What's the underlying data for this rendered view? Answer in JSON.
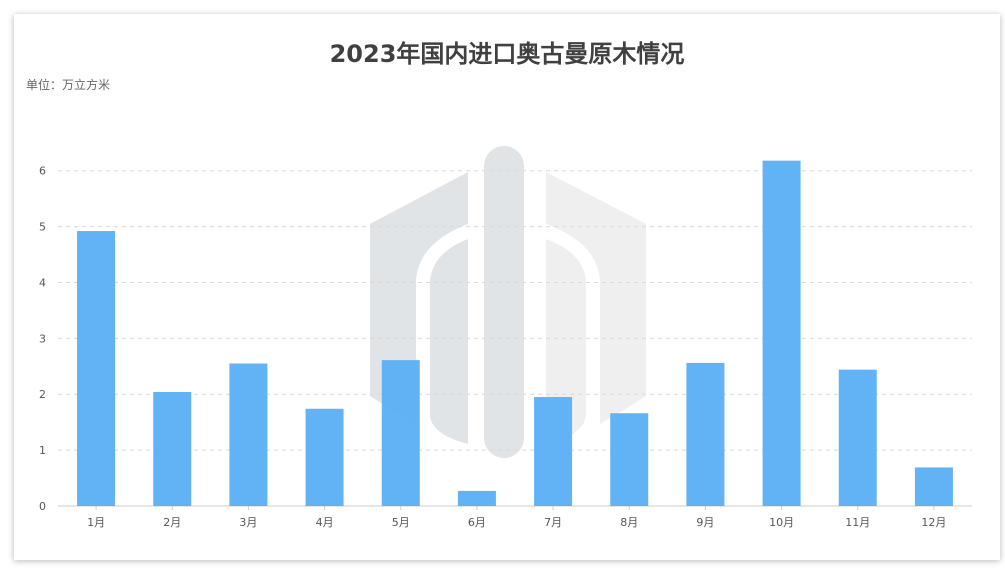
{
  "chart_data": {
    "type": "bar",
    "title": "2023年国内进口奥古曼原木情况",
    "unit_label": "单位：万立方米",
    "categories": [
      "1月",
      "2月",
      "3月",
      "4月",
      "5月",
      "6月",
      "7月",
      "8月",
      "9月",
      "10月",
      "11月",
      "12月"
    ],
    "values": [
      4.92,
      2.04,
      2.55,
      1.74,
      2.61,
      0.27,
      1.95,
      1.66,
      2.56,
      6.18,
      2.44,
      0.69
    ],
    "yticks": [
      "0",
      "1",
      "2",
      "3",
      "4",
      "5",
      "6"
    ],
    "ylim": [
      0,
      6.8
    ],
    "grid": true,
    "colors": {
      "bar": "#5aaef5",
      "grid": "#d9d9d9",
      "axis": "#cccccc",
      "title": "#404040"
    }
  }
}
